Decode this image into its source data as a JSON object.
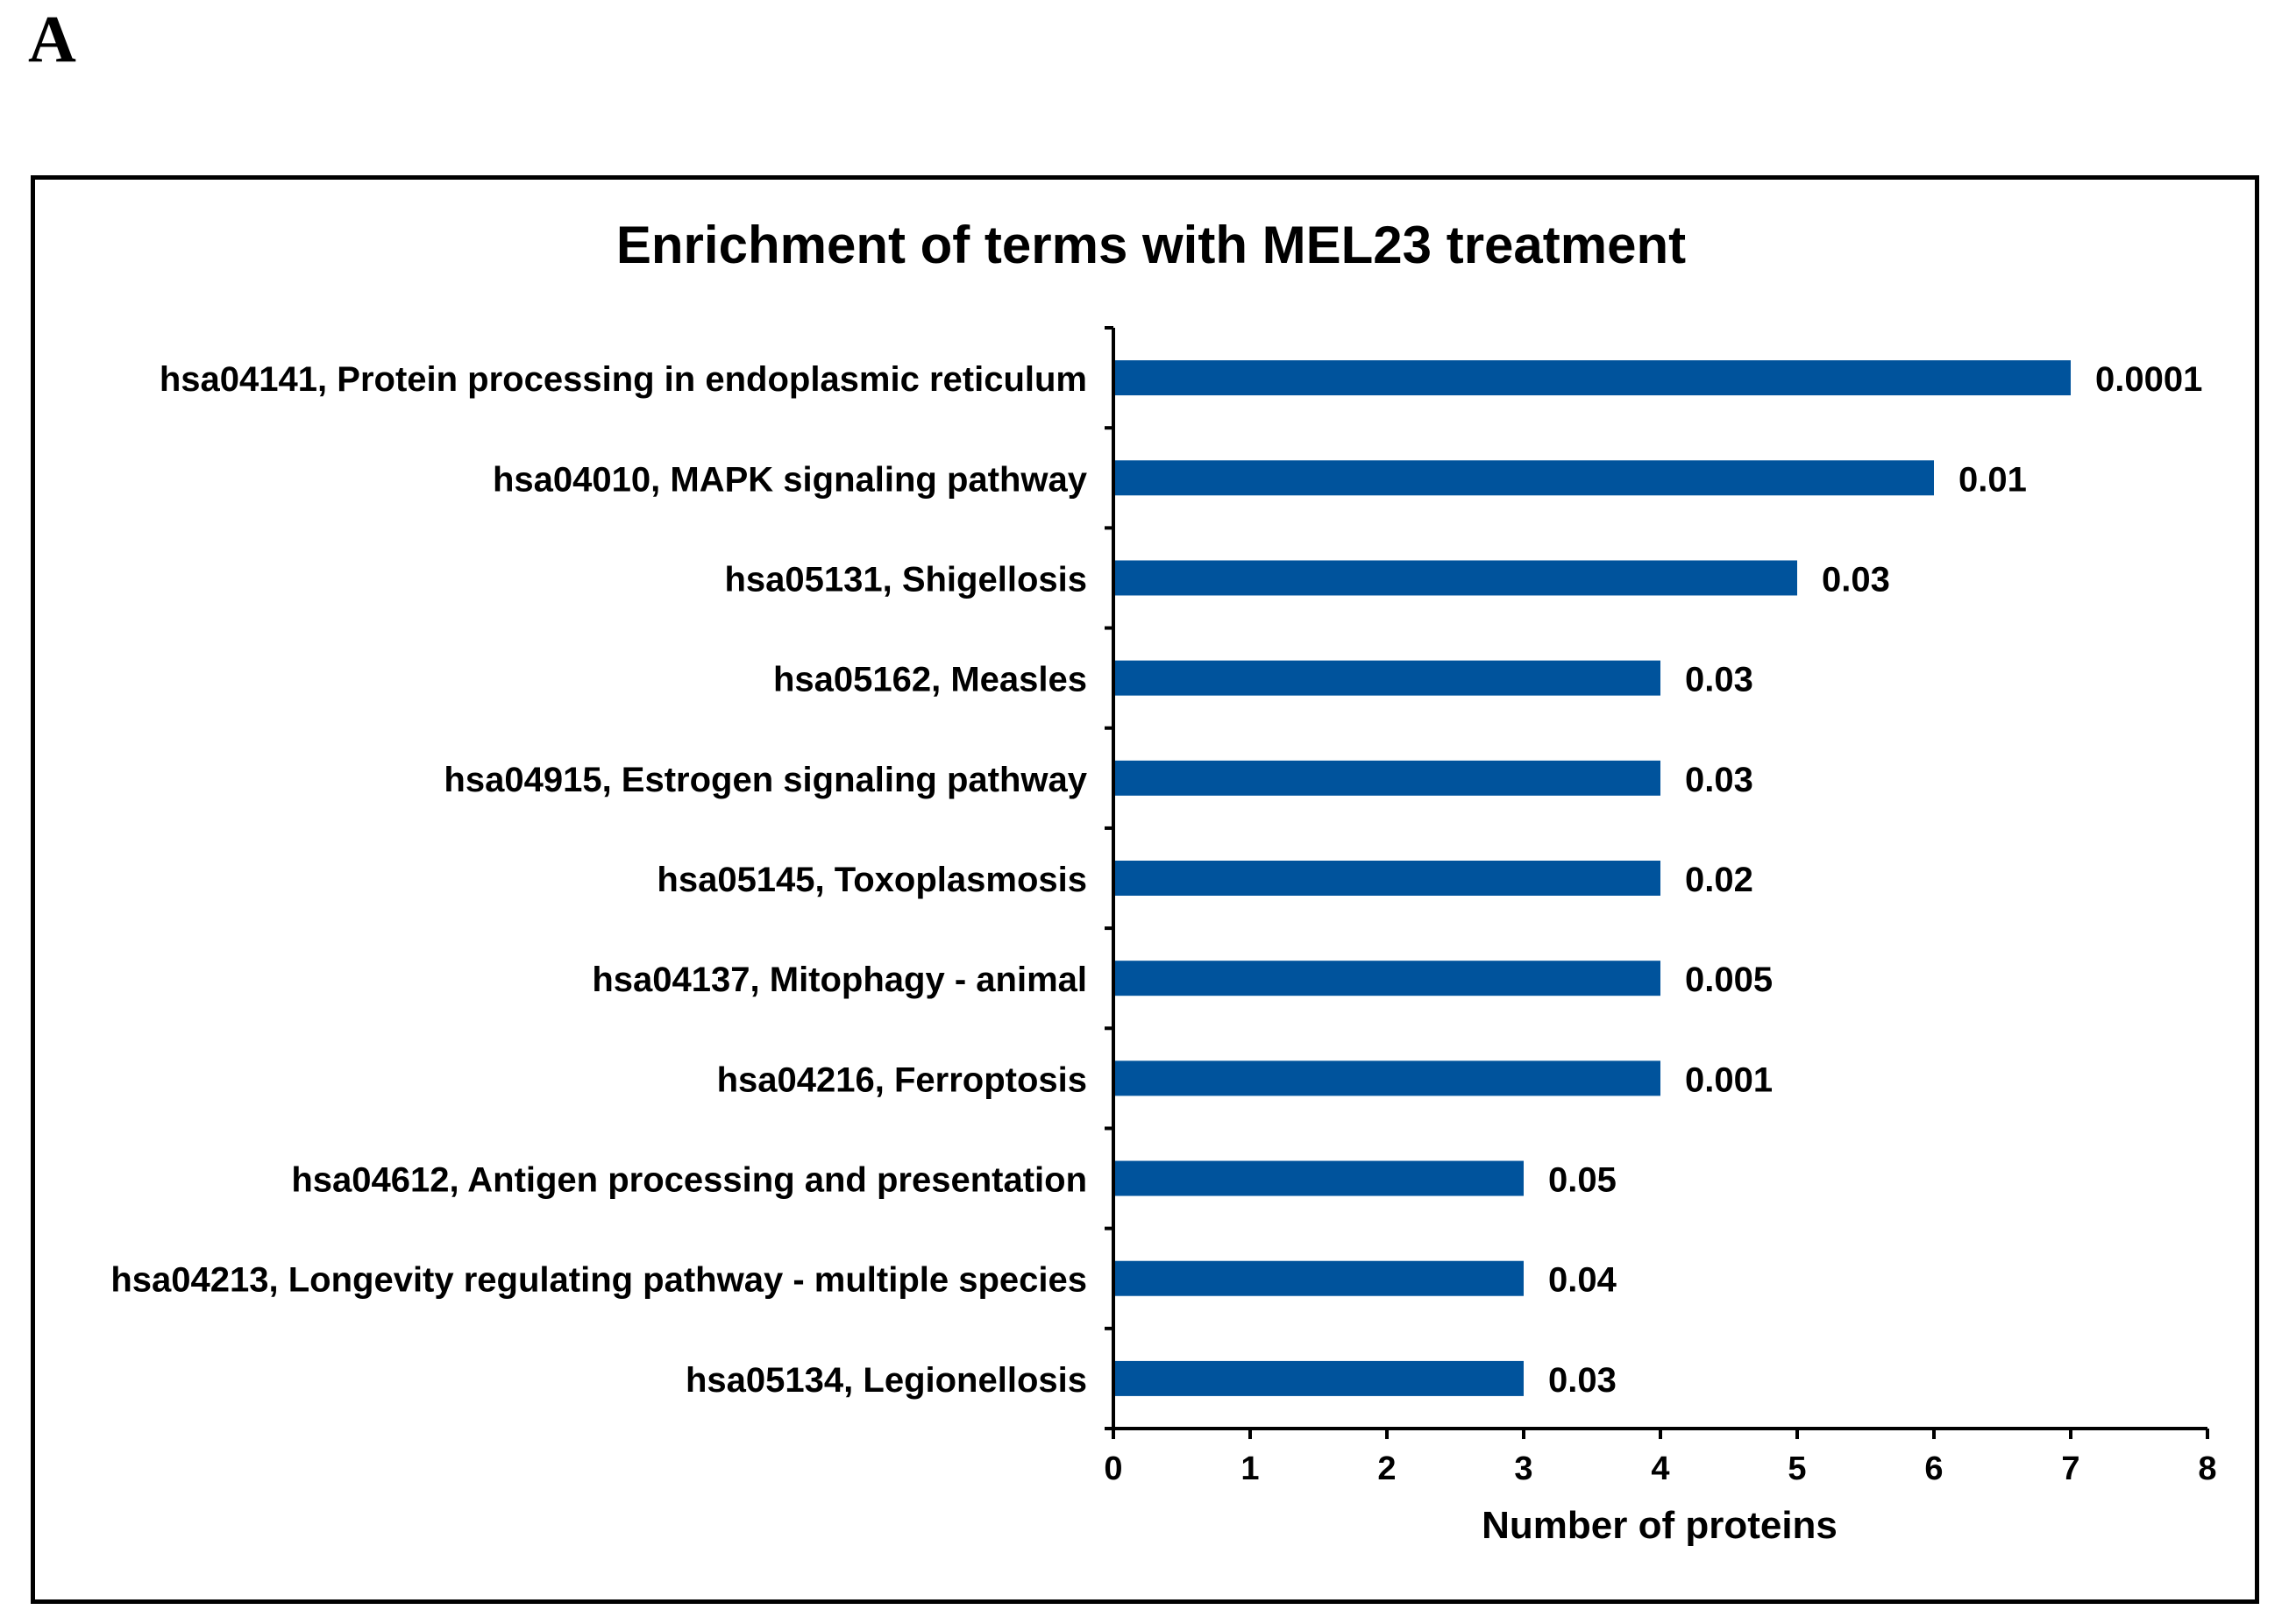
{
  "figure": {
    "panel_label": "A"
  },
  "chart_data": {
    "type": "bar",
    "orientation": "horizontal",
    "title": "Enrichment of terms with MEL23 treatment",
    "xlabel": "Number of proteins",
    "ylabel": "",
    "xlim": [
      0,
      8
    ],
    "x_ticks": [
      "0",
      "1",
      "2",
      "3",
      "4",
      "5",
      "6",
      "7",
      "8"
    ],
    "bar_color": "#00539c",
    "categories": [
      "hsa04141, Protein processing in endoplasmic reticulum",
      "hsa04010, MAPK signaling pathway",
      "hsa05131, Shigellosis",
      "hsa05162, Measles",
      "hsa04915, Estrogen signaling pathway",
      "hsa05145, Toxoplasmosis",
      "hsa04137, Mitophagy - animal",
      "hsa04216, Ferroptosis",
      "hsa04612, Antigen processing and presentation",
      "hsa04213, Longevity regulating pathway - multiple species",
      "hsa05134, Legionellosis"
    ],
    "values": [
      7,
      6,
      5,
      4,
      4,
      4,
      4,
      4,
      3,
      3,
      3
    ],
    "data_labels": [
      "0.0001",
      "0.01",
      "0.03",
      "0.03",
      "0.03",
      "0.02",
      "0.005",
      "0.001",
      "0.05",
      "0.04",
      "0.03"
    ],
    "grid": false,
    "legend": "none"
  }
}
